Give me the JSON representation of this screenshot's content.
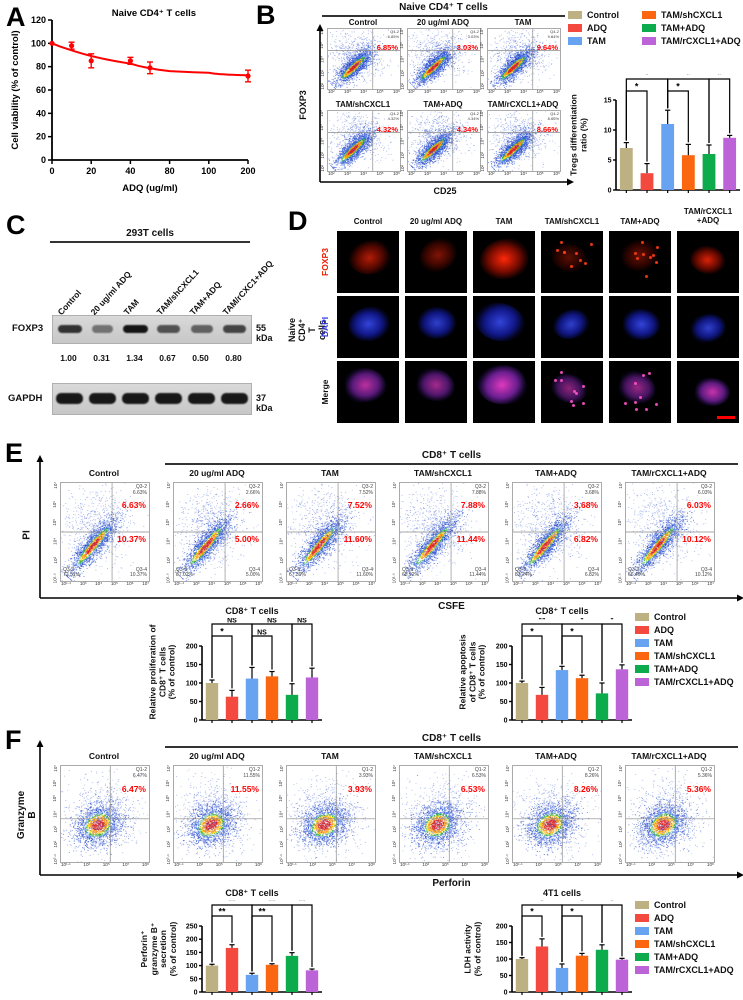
{
  "groups": {
    "labels": [
      "Control",
      "ADQ",
      "TAM",
      "TAM/shCXCL1",
      "TAM+ADQ",
      "TAM/rCXCL1+ADQ"
    ],
    "colors": [
      "#BDB184",
      "#F4493F",
      "#68A3F1",
      "#FB6711",
      "#0CAC4D",
      "#BC63D7"
    ],
    "accent_red": "#FF0000"
  },
  "panelA": {
    "letter": "A"
  },
  "panelB": {
    "letter": "B",
    "title": "Naive CD4⁺ T cells",
    "xlabel": "CD25",
    "ylabel": "FOXP3",
    "plot_titles": [
      "Control",
      "20 ug/ml ADQ",
      "TAM",
      "TAM/shCXCL1",
      "TAM+ADQ",
      "TAM/rCXCL1+ADQ"
    ],
    "quadrant_name": "Q4-2",
    "percentages": [
      "6.85%",
      "3.03%",
      "9.64%",
      "4.32%",
      "4.34%",
      "8.66%"
    ],
    "xticks": [
      "10²",
      "10³",
      "10⁴",
      "10⁵",
      "10⁶"
    ],
    "yticks": [
      "10²",
      "10³",
      "10⁴",
      "10⁵",
      "10⁶"
    ]
  },
  "panelC": {
    "letter": "C",
    "title": "293T cells",
    "lanes": [
      "Control",
      "20 ug/ml ADQ",
      "TAM",
      "TAM/shCXCL1",
      "TAM+ADQ",
      "TAM/rCXC1+ADQ"
    ],
    "foxp3_label": "FOXP3",
    "foxp3_size": "55 kDa",
    "foxp3_values": [
      "1.00",
      "0.31",
      "1.34",
      "0.67",
      "0.50",
      "0.80"
    ],
    "foxp3_intensities": [
      1.0,
      0.31,
      1.34,
      0.67,
      0.5,
      0.8
    ],
    "gapdh_label": "GAPDH",
    "gapdh_size": "37 kDa"
  },
  "panelD": {
    "letter": "D",
    "group_label": "Naive CD4⁺  T cells",
    "columns": [
      "Control",
      "20 ug/ml ADQ",
      "TAM",
      "TAM/shCXCL1",
      "TAM+ADQ",
      "TAM/rCXCL1\n+ADQ"
    ],
    "rows": [
      {
        "label": "FOXP3",
        "color": "#F01800"
      },
      {
        "label": "DAPI",
        "color": "#2B35E0"
      },
      {
        "label": "Merge",
        "color": "#111111"
      }
    ]
  },
  "panelE": {
    "letter": "E",
    "title": "CD8⁺ T cells",
    "xlabel": "CSFE",
    "ylabel": "PI",
    "plot_titles": [
      "Control",
      "20 ug/ml ADQ",
      "TAM",
      "TAM/shCXCL1",
      "TAM+ADQ",
      "TAM/rCXCL1+ADQ"
    ],
    "quad_names": {
      "tr": "Q3-2",
      "bl": "Q3-3",
      "br": "Q3-4"
    },
    "plots": [
      {
        "q32": "6.63%",
        "q34": "10.37%",
        "q33": "72.51%"
      },
      {
        "q32": "2.66%",
        "q34": "5.00%",
        "q33": "87.02%"
      },
      {
        "q32": "7.52%",
        "q34": "11.60%",
        "q33": "67.39%"
      },
      {
        "q32": "7.88%",
        "q34": "11.44%",
        "q33": "68.92%"
      },
      {
        "q32": "3.68%",
        "q34": "6.82%",
        "q33": "82.24%"
      },
      {
        "q32": "6.03%",
        "q34": "10.12%",
        "q33": "66.40%"
      }
    ],
    "xticks": [
      "10¹·⁴",
      "10³",
      "10⁴",
      "10⁵",
      "10⁶",
      "10⁷"
    ],
    "yticks": [
      "10¹·⁶",
      "10³",
      "10⁴",
      "10⁵",
      "10⁶",
      "10⁷"
    ]
  },
  "panelF": {
    "letter": "F",
    "title": "CD8⁺ T cells",
    "xlabel": "Perforin",
    "ylabel": "Granzyme B",
    "plot_titles": [
      "Control",
      "20 ug/ml ADQ",
      "TAM",
      "TAM/shCXCL1",
      "TAM+ADQ",
      "TAM/rCXCL1+ADQ"
    ],
    "quad_name": "Q1-2",
    "percentages": [
      "6.47%",
      "11.55%",
      "3.93%",
      "6.53%",
      "8.26%",
      "5.36%"
    ],
    "xticks": [
      "10¹·¹",
      "10³",
      "10⁵",
      "10⁷",
      "10⁸"
    ],
    "yticks": [
      "10⁰·⁶",
      "10²",
      "10³",
      "10⁴",
      "10⁵",
      "10⁶",
      "10⁷"
    ]
  },
  "chart_data": [
    {
      "id": "A-viability",
      "type": "line",
      "title": "Naive  CD4⁺ T cells",
      "xlabel": "ADQ (ug/ml)",
      "ylabel": "Cell viability (% of control)",
      "x": [
        0,
        10,
        20,
        40,
        60,
        200
      ],
      "y": [
        100,
        98,
        85,
        85,
        79,
        72
      ],
      "yerr": [
        0,
        3,
        6,
        3,
        5,
        5
      ],
      "xticks": [
        0,
        20,
        40,
        80,
        100,
        200
      ],
      "yticks": [
        0,
        20,
        40,
        60,
        80,
        100,
        120
      ],
      "ylim": [
        0,
        120
      ],
      "color": "#FF0000"
    },
    {
      "id": "B-tregs",
      "type": "bar",
      "title": "",
      "ylabel": [
        "Tregs differentiation",
        "ratio (%)"
      ],
      "categories": [
        "Control",
        "ADQ",
        "TAM",
        "TAM/shCXCL1",
        "TAM+ADQ",
        "TAM/rCXCL1+ADQ"
      ],
      "values": [
        7.0,
        2.8,
        11.0,
        5.8,
        6.0,
        8.7
      ],
      "errors": [
        0.9,
        1.6,
        2.3,
        1.8,
        1.5,
        0.4
      ],
      "ylim": [
        0,
        15
      ],
      "yticks": [
        0,
        5,
        10,
        15
      ],
      "sig": [
        {
          "a": 0,
          "b": 1,
          "label": "*",
          "tier": 1
        },
        {
          "a": 0,
          "b": 2,
          "label": "*",
          "tier": 2
        },
        {
          "a": 2,
          "b": 3,
          "label": "*",
          "tier": 1
        },
        {
          "a": 2,
          "b": 4,
          "label": "*",
          "tier": 2
        },
        {
          "a": 4,
          "b": 5,
          "label": "*",
          "tier": 2
        }
      ]
    },
    {
      "id": "E-proliferation",
      "type": "bar",
      "title": "CD8⁺ T cells",
      "ylabel": [
        "Relative proliferation of",
        "CD8⁺ T cells",
        "(% of control)"
      ],
      "categories": [
        "Control",
        "ADQ",
        "TAM",
        "TAM/shCXCL1",
        "TAM+ADQ",
        "TAM/rCXCL1+ADQ"
      ],
      "values": [
        100,
        63,
        112,
        118,
        68,
        115
      ],
      "errors": [
        8,
        17,
        30,
        13,
        30,
        25
      ],
      "ylim": [
        0,
        200
      ],
      "yticks": [
        0,
        50,
        100,
        150,
        200
      ],
      "sig": [
        {
          "a": 0,
          "b": 1,
          "label": "*",
          "tier": 1
        },
        {
          "a": 0,
          "b": 2,
          "label": "NS",
          "tier": 2
        },
        {
          "a": 2,
          "b": 3,
          "label": "NS",
          "tier": 1
        },
        {
          "a": 2,
          "b": 4,
          "label": "NS",
          "tier": 2
        },
        {
          "a": 4,
          "b": 5,
          "label": "NS",
          "tier": 2
        }
      ]
    },
    {
      "id": "E-apoptosis",
      "type": "bar",
      "title": "CD8⁺ T cells",
      "ylabel": [
        "Relative apoptosis",
        "of CD8⁺ T cells",
        "(% of control)"
      ],
      "categories": [
        "Control",
        "ADQ",
        "TAM",
        "TAM/shCXCL1",
        "TAM+ADQ",
        "TAM/rCXCL1+ADQ"
      ],
      "values": [
        100,
        68,
        135,
        113,
        72,
        137
      ],
      "errors": [
        5,
        20,
        10,
        8,
        28,
        12
      ],
      "ylim": [
        0,
        200
      ],
      "yticks": [
        0,
        50,
        100,
        150,
        200
      ],
      "sig": [
        {
          "a": 0,
          "b": 1,
          "label": "*",
          "tier": 1
        },
        {
          "a": 0,
          "b": 2,
          "label": "**",
          "tier": 2
        },
        {
          "a": 2,
          "b": 3,
          "label": "*",
          "tier": 1
        },
        {
          "a": 2,
          "b": 4,
          "label": "*",
          "tier": 2
        },
        {
          "a": 4,
          "b": 5,
          "label": "*",
          "tier": 2
        }
      ]
    },
    {
      "id": "F-secretion",
      "type": "bar",
      "title": "CD8⁺ T cells",
      "ylabel": [
        "Perforin⁺",
        "granzyme B⁺",
        "secretion",
        "(% of control)"
      ],
      "categories": [
        "Control",
        "ADQ",
        "TAM",
        "TAM/shCXCL1",
        "TAM+ADQ",
        "TAM/rCXCL1+ADQ"
      ],
      "values": [
        100,
        167,
        65,
        103,
        137,
        82
      ],
      "errors": [
        5,
        12,
        6,
        4,
        12,
        5
      ],
      "ylim": [
        0,
        250
      ],
      "yticks": [
        0,
        50,
        100,
        150,
        200,
        250
      ],
      "sig": [
        {
          "a": 0,
          "b": 1,
          "label": "**",
          "tier": 1
        },
        {
          "a": 0,
          "b": 2,
          "label": "**",
          "tier": 2
        },
        {
          "a": 2,
          "b": 3,
          "label": "**",
          "tier": 1
        },
        {
          "a": 2,
          "b": 4,
          "label": "**",
          "tier": 2
        },
        {
          "a": 4,
          "b": 5,
          "label": "**",
          "tier": 2
        }
      ]
    },
    {
      "id": "F-ldh",
      "type": "bar",
      "title": "4T1 cells",
      "ylabel": [
        "LDH activity",
        "(% of control)"
      ],
      "categories": [
        "Control",
        "ADQ",
        "TAM",
        "TAM/shCXCL1",
        "TAM+ADQ",
        "TAM/rCXCL1+ADQ"
      ],
      "values": [
        100,
        138,
        73,
        110,
        128,
        98
      ],
      "errors": [
        4,
        23,
        12,
        7,
        15,
        4
      ],
      "ylim": [
        0,
        200
      ],
      "yticks": [
        0,
        50,
        100,
        150,
        200
      ],
      "sig": [
        {
          "a": 0,
          "b": 1,
          "label": "*",
          "tier": 1
        },
        {
          "a": 0,
          "b": 2,
          "label": "*",
          "tier": 2
        },
        {
          "a": 2,
          "b": 3,
          "label": "*",
          "tier": 1
        },
        {
          "a": 2,
          "b": 4,
          "label": "*",
          "tier": 2
        },
        {
          "a": 4,
          "b": 5,
          "label": "*",
          "tier": 2
        }
      ]
    }
  ]
}
